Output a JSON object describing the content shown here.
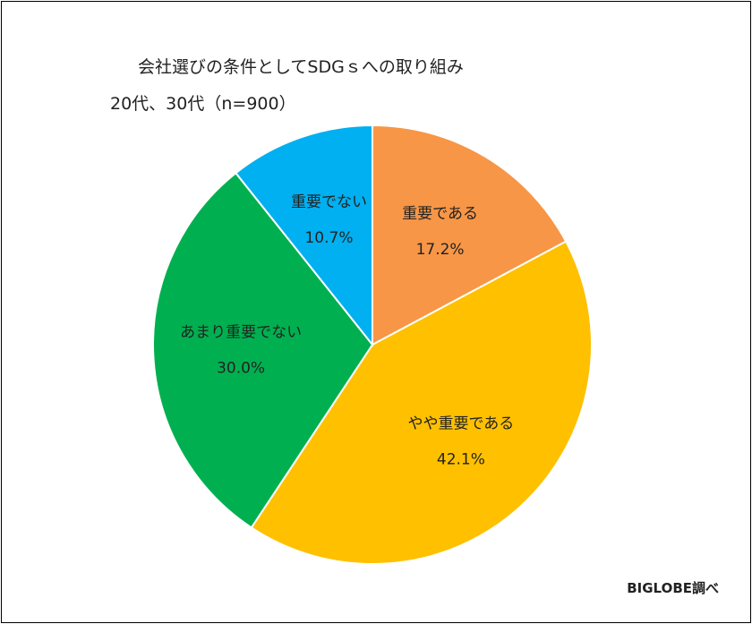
{
  "chart_data": {
    "type": "pie",
    "title": "会社選びの条件としてSDGｓへの取り組み",
    "subtitle": "20代、30代（n=900）",
    "source": "BIGLOBE調べ",
    "categories": [
      "重要である",
      "やや重要である",
      "あまり重要でない",
      "重要でない"
    ],
    "values": [
      17.2,
      42.1,
      30.0,
      10.7
    ],
    "value_labels": [
      "17.2%",
      "42.1%",
      "30.0%",
      "10.7%"
    ],
    "colors": [
      "#F79646",
      "#FFC000",
      "#00B050",
      "#00B0F0"
    ],
    "start_angle": "12 o'clock",
    "direction": "clockwise",
    "legend": "none"
  }
}
